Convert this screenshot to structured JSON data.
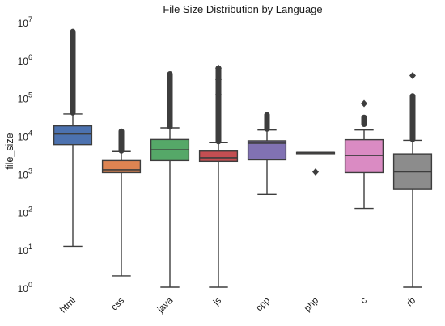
{
  "chart_data": {
    "type": "box",
    "title": "File Size Distribution by Language",
    "xlabel": "",
    "ylabel": "file_size",
    "y_scale": "log",
    "ylim": [
      1,
      10000000
    ],
    "y_ticks": [
      {
        "value": 1,
        "base": "10",
        "exp": "0"
      },
      {
        "value": 10,
        "base": "10",
        "exp": "1"
      },
      {
        "value": 100,
        "base": "10",
        "exp": "2"
      },
      {
        "value": 1000,
        "base": "10",
        "exp": "3"
      },
      {
        "value": 10000,
        "base": "10",
        "exp": "4"
      },
      {
        "value": 100000,
        "base": "10",
        "exp": "5"
      },
      {
        "value": 1000000,
        "base": "10",
        "exp": "6"
      },
      {
        "value": 10000000,
        "base": "10",
        "exp": "7"
      }
    ],
    "grid": false,
    "categories": [
      "html",
      "css",
      "java",
      "js",
      "cpp",
      "php",
      "c",
      "rb"
    ],
    "series": [
      {
        "category": "html",
        "color": "#4c72b0",
        "whisker_low": 12,
        "q1": 5800,
        "median": 11000,
        "q3": 18000,
        "whisker_high": 37000,
        "outliers_from": 40000,
        "outliers_to": 5500000,
        "outliers": []
      },
      {
        "category": "css",
        "color": "#dd8452",
        "whisker_low": 2,
        "q1": 1050,
        "median": 1250,
        "q3": 2200,
        "whisker_high": 3800,
        "outliers_from": 4000,
        "outliers_to": 13000,
        "outliers": []
      },
      {
        "category": "java",
        "color": "#55a868",
        "whisker_low": 1,
        "q1": 2200,
        "median": 4200,
        "q3": 7900,
        "whisker_high": 16000,
        "outliers_from": 17000,
        "outliers_to": 420000,
        "outliers": []
      },
      {
        "category": "js",
        "color": "#c44e52",
        "whisker_low": 1,
        "q1": 2100,
        "median": 2600,
        "q3": 3900,
        "whisker_high": 6500,
        "outliers_from": 7000,
        "outliers_to": 600000,
        "outliers": [
          120000,
          300000,
          600000
        ]
      },
      {
        "category": "cpp",
        "color": "#8172b3",
        "whisker_low": 280,
        "q1": 2300,
        "median": 6300,
        "q3": 7300,
        "whisker_high": 14000,
        "outliers_from": 15000,
        "outliers_to": 35000,
        "outliers": []
      },
      {
        "category": "php",
        "color": "#937860",
        "whisker_low": 3600,
        "q1": 3600,
        "median": 3600,
        "q3": 3600,
        "whisker_high": 3600,
        "outliers_from": null,
        "outliers_to": null,
        "outliers": [
          1100
        ]
      },
      {
        "category": "c",
        "color": "#da8bc3",
        "whisker_low": 120,
        "q1": 1050,
        "median": 3000,
        "q3": 7800,
        "whisker_high": 14000,
        "outliers_from": 20000,
        "outliers_to": 30000,
        "outliers": [
          70000
        ]
      },
      {
        "category": "rb",
        "color": "#8c8c8c",
        "whisker_low": 1,
        "q1": 380,
        "median": 1100,
        "q3": 3300,
        "whisker_high": 7500,
        "outliers_from": 8000,
        "outliers_to": 110000,
        "outliers": [
          380000
        ]
      }
    ]
  }
}
